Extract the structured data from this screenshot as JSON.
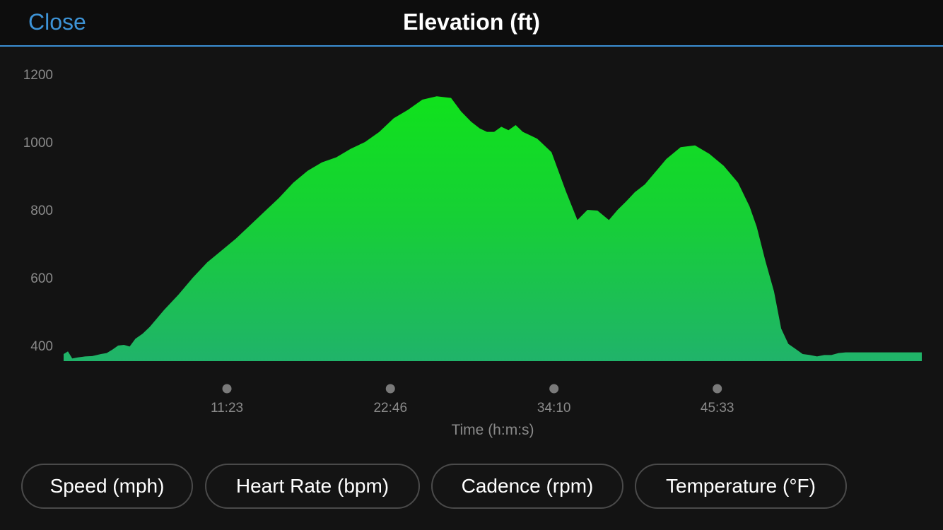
{
  "header": {
    "close_label": "Close",
    "title": "Elevation (ft)",
    "accent_color": "#3d93d6"
  },
  "buttons": [
    {
      "label": "Speed (mph)"
    },
    {
      "label": "Heart Rate (bpm)"
    },
    {
      "label": "Cadence (rpm)"
    },
    {
      "label": "Temperature (°F)"
    }
  ],
  "chart_data": {
    "type": "area",
    "title": "Elevation (ft)",
    "xlabel": "Time (h:m:s)",
    "ylabel": "",
    "ylim": [
      355,
      1200
    ],
    "yticks": [
      400,
      600,
      800,
      1000,
      1200
    ],
    "xlim_minutes": [
      0,
      59.8
    ],
    "xticks": [
      {
        "minutes": 11.38,
        "label": "11:23"
      },
      {
        "minutes": 22.77,
        "label": "22:46"
      },
      {
        "minutes": 34.17,
        "label": "34:10"
      },
      {
        "minutes": 45.55,
        "label": "45:33"
      }
    ],
    "fill_color_top": "#10e21c",
    "fill_color_bottom": "#20b36a",
    "grid": false,
    "legend": "none",
    "series": [
      {
        "x_minutes": [
          0,
          0.3,
          0.6,
          1,
          1.5,
          2,
          2.6,
          3,
          3.4,
          3.8,
          4.2,
          4.6,
          5,
          5.5,
          6,
          7,
          8,
          9,
          10,
          11,
          12,
          13,
          14,
          15,
          16,
          17,
          18,
          19,
          20,
          21,
          22,
          23,
          24,
          25,
          26,
          27,
          27.7,
          28.4,
          29,
          29.5,
          30,
          30.5,
          31,
          31.5,
          32,
          32.5,
          33,
          34,
          35,
          35.8,
          36.5,
          37.2,
          38,
          38.6,
          39.2,
          39.8,
          40.5,
          41,
          41.5,
          42,
          43,
          44,
          45,
          46,
          47,
          47.8,
          48.3,
          48.9,
          49.5,
          50,
          50.5,
          51,
          51.5,
          52,
          52.5,
          53,
          53.5,
          54,
          54.5,
          55,
          55.5,
          56,
          56.5,
          57,
          57.5,
          58,
          58.5,
          59,
          59.5,
          59.8
        ],
        "y": [
          375,
          383,
          362,
          365,
          368,
          369,
          375,
          378,
          388,
          400,
          402,
          397,
          420,
          435,
          455,
          505,
          550,
          600,
          645,
          680,
          715,
          755,
          795,
          835,
          880,
          915,
          940,
          955,
          980,
          1000,
          1030,
          1070,
          1095,
          1125,
          1135,
          1130,
          1090,
          1060,
          1040,
          1030,
          1030,
          1045,
          1035,
          1050,
          1030,
          1020,
          1010,
          970,
          855,
          770,
          800,
          798,
          770,
          800,
          825,
          852,
          875,
          900,
          925,
          950,
          985,
          990,
          965,
          930,
          880,
          810,
          750,
          650,
          560,
          450,
          405,
          390,
          375,
          372,
          368,
          372,
          372,
          378,
          380,
          380,
          380,
          380,
          380,
          380,
          380,
          380,
          380,
          380,
          380,
          380
        ]
      }
    ]
  }
}
